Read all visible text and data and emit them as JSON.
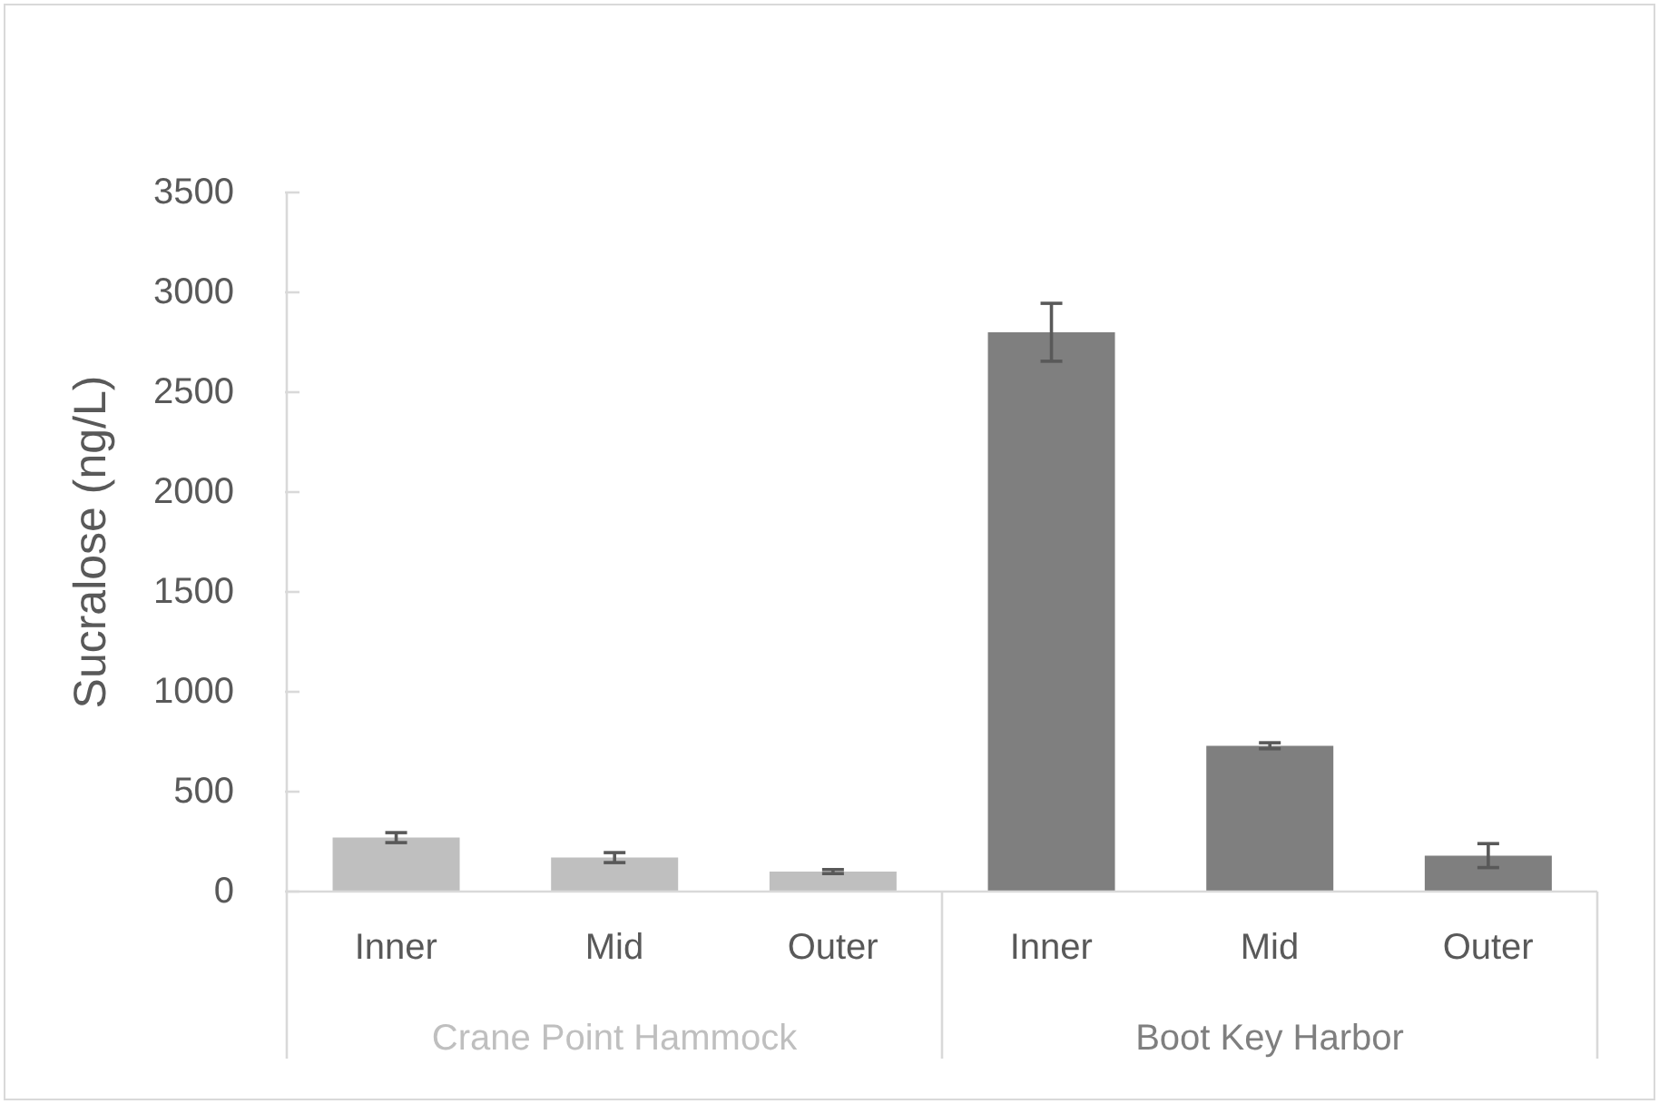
{
  "chart_data": {
    "type": "bar",
    "ylabel": "Sucralose (ng/L)",
    "categories": [
      "Inner",
      "Mid",
      "Outer",
      "Inner",
      "Mid",
      "Outer"
    ],
    "series": [
      {
        "name": "Crane Point Hammock",
        "color": "#bfbfbf",
        "values": [
          270,
          170,
          100,
          null,
          null,
          null
        ],
        "errors": [
          25,
          25,
          10,
          null,
          null,
          null
        ]
      },
      {
        "name": "Boot Key Harbor",
        "color": "#7f7f7f",
        "values": [
          null,
          null,
          null,
          2800,
          730,
          180
        ],
        "errors": [
          null,
          null,
          null,
          145,
          15,
          60
        ]
      }
    ],
    "ylim": [
      0,
      3500
    ],
    "yticks": [
      0,
      500,
      1000,
      1500,
      2000,
      2500,
      3000,
      3500
    ]
  }
}
